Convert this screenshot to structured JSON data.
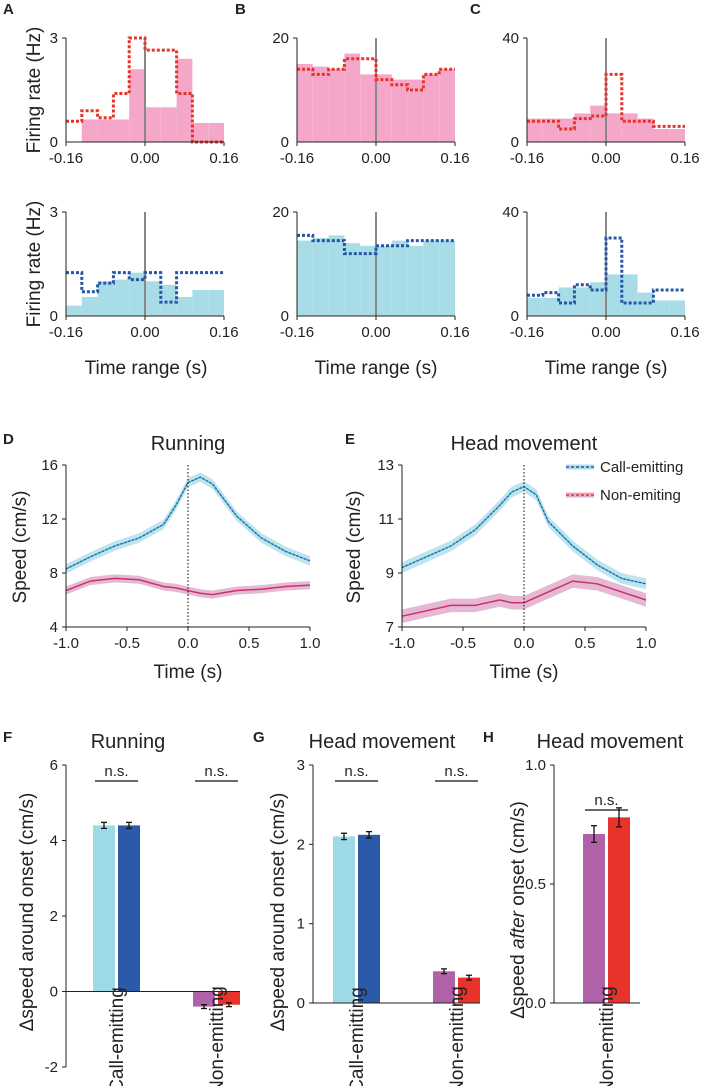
{
  "colors": {
    "pink": "#F4A7C8",
    "lightblue": "#A8DDE8",
    "red": "#E8332A",
    "darkblue": "#2457A6",
    "cyan": "#49B3CB",
    "magenta": "#B5378A",
    "purple": "#B062A9",
    "barred": "#E8332A",
    "barlight": "#9ED9E6",
    "bardark": "#2B5BA8",
    "axis": "#222222",
    "zeroline": "#888888"
  },
  "chart_data": [
    {
      "panel": "A",
      "row": "top",
      "type": "bar",
      "ylabel": "Firing rate (Hz)",
      "ylim": [
        0,
        3
      ],
      "yticks": [
        "0",
        "3"
      ],
      "xlim": [
        -0.16,
        0.16
      ],
      "xticks": [
        "-0.16",
        "0.00",
        "0.16"
      ],
      "bins": [
        -0.16,
        -0.128,
        -0.096,
        -0.064,
        -0.032,
        0.0,
        0.032,
        0.064,
        0.096,
        0.128,
        0.16
      ],
      "bar_values": [
        0,
        0.65,
        0.65,
        0.65,
        2.1,
        1.0,
        1.0,
        2.4,
        0.55,
        0.55
      ],
      "step_values": [
        0.6,
        0.9,
        0.7,
        1.4,
        3.0,
        2.65,
        2.65,
        1.4,
        0.0,
        0.0
      ]
    },
    {
      "panel": "B",
      "row": "top",
      "type": "bar",
      "ylim": [
        0,
        20
      ],
      "yticks": [
        "0",
        "20"
      ],
      "xlim": [
        -0.16,
        0.16
      ],
      "xticks": [
        "-0.16",
        "0.00",
        "0.16"
      ],
      "bins": [
        -0.16,
        -0.128,
        -0.096,
        -0.064,
        -0.032,
        0.0,
        0.032,
        0.064,
        0.096,
        0.128,
        0.16
      ],
      "bar_values": [
        15,
        14.5,
        14,
        17,
        13,
        13,
        12,
        12,
        13,
        14
      ],
      "step_values": [
        14,
        13,
        14,
        16,
        16,
        12,
        11,
        10,
        13,
        14
      ]
    },
    {
      "panel": "C",
      "row": "top",
      "type": "bar",
      "ylim": [
        0,
        40
      ],
      "yticks": [
        "0",
        "40"
      ],
      "xlim": [
        -0.16,
        0.16
      ],
      "xticks": [
        "-0.16",
        "0.00",
        "0.16"
      ],
      "bins": [
        -0.16,
        -0.128,
        -0.096,
        -0.064,
        -0.032,
        0.0,
        0.032,
        0.064,
        0.096,
        0.128,
        0.16
      ],
      "bar_values": [
        9,
        9,
        9,
        11,
        14,
        11,
        11,
        9,
        5,
        5
      ],
      "step_values": [
        8,
        8,
        5,
        9,
        10,
        26,
        8,
        8,
        6,
        6
      ]
    },
    {
      "panel": "A",
      "row": "bottom",
      "type": "bar",
      "ylabel": "Firing rate (Hz)",
      "xlabel": "Time range (s)",
      "ylim": [
        0,
        3
      ],
      "yticks": [
        "0",
        "3"
      ],
      "xlim": [
        -0.16,
        0.16
      ],
      "xticks": [
        "-0.16",
        "0.00",
        "0.16"
      ],
      "bins": [
        -0.16,
        -0.128,
        -0.096,
        -0.064,
        -0.032,
        0.0,
        0.032,
        0.064,
        0.096,
        0.128,
        0.16
      ],
      "bar_values": [
        0.3,
        0.55,
        1.0,
        1.05,
        1.25,
        1.0,
        0.9,
        0.55,
        0.75,
        0.75
      ],
      "step_values": [
        1.25,
        0.7,
        0.95,
        1.25,
        1.05,
        1.25,
        0.4,
        1.25,
        1.25,
        1.25
      ]
    },
    {
      "panel": "B",
      "row": "bottom",
      "type": "bar",
      "xlabel": "Time range (s)",
      "ylim": [
        0,
        20
      ],
      "yticks": [
        "0",
        "20"
      ],
      "xlim": [
        -0.16,
        0.16
      ],
      "xticks": [
        "-0.16",
        "0.00",
        "0.16"
      ],
      "bins": [
        -0.16,
        -0.128,
        -0.096,
        -0.064,
        -0.032,
        0.0,
        0.032,
        0.064,
        0.096,
        0.128,
        0.16
      ],
      "bar_values": [
        14.5,
        15,
        15.5,
        14,
        13.5,
        13.5,
        14.5,
        13.5,
        14.5,
        14.5
      ],
      "step_values": [
        15.5,
        14.5,
        14.5,
        12,
        12,
        13.5,
        13.5,
        14.5,
        14.5,
        14.5
      ]
    },
    {
      "panel": "C",
      "row": "bottom",
      "type": "bar",
      "xlabel": "Time range (s)",
      "ylim": [
        0,
        40
      ],
      "yticks": [
        "0",
        "40"
      ],
      "xlim": [
        -0.16,
        0.16
      ],
      "xticks": [
        "-0.16",
        "0.00",
        "0.16"
      ],
      "bins": [
        -0.16,
        -0.128,
        -0.096,
        -0.064,
        -0.032,
        0.0,
        0.032,
        0.064,
        0.096,
        0.128,
        0.16
      ],
      "bar_values": [
        7,
        7,
        11,
        11,
        13,
        16,
        16,
        9,
        6,
        6
      ],
      "step_values": [
        8,
        9,
        5,
        12,
        10,
        30,
        5,
        5,
        10,
        10
      ]
    },
    {
      "panel": "D",
      "type": "line",
      "title": "Running",
      "xlabel": "Time (s)",
      "ylabel": "Speed (cm/s)",
      "xlim": [
        -1.0,
        1.0
      ],
      "ylim": [
        4,
        16
      ],
      "xticks": [
        "-1.0",
        "-0.5",
        "0.0",
        "0.5",
        "1.0"
      ],
      "yticks": [
        "4",
        "8",
        "12",
        "16"
      ],
      "x": [
        -1.0,
        -0.8,
        -0.6,
        -0.4,
        -0.2,
        -0.1,
        0.0,
        0.1,
        0.2,
        0.4,
        0.6,
        0.8,
        1.0
      ],
      "series": [
        {
          "name": "Call-emitting",
          "values": [
            8.3,
            9.2,
            10.0,
            10.6,
            11.6,
            13.0,
            14.7,
            15.1,
            14.6,
            12.2,
            10.6,
            9.6,
            8.9
          ],
          "band": 0.35
        },
        {
          "name": "Non-emiting",
          "values": [
            6.7,
            7.4,
            7.6,
            7.5,
            7.0,
            6.9,
            6.7,
            6.5,
            6.4,
            6.7,
            6.8,
            7.0,
            7.1
          ],
          "band": 0.3
        }
      ]
    },
    {
      "panel": "E",
      "type": "line",
      "title": "Head movement",
      "xlabel": "Time (s)",
      "ylabel": "Speed (cm/s)",
      "xlim": [
        -1.0,
        1.0
      ],
      "ylim": [
        7,
        13
      ],
      "xticks": [
        "-1.0",
        "-0.5",
        "0.0",
        "0.5",
        "1.0"
      ],
      "yticks": [
        "7",
        "9",
        "11",
        "13"
      ],
      "x": [
        -1.0,
        -0.8,
        -0.6,
        -0.4,
        -0.2,
        -0.1,
        0.0,
        0.1,
        0.2,
        0.4,
        0.6,
        0.8,
        1.0
      ],
      "series": [
        {
          "name": "Call-emitting",
          "values": [
            9.2,
            9.6,
            10.0,
            10.6,
            11.5,
            12.0,
            12.2,
            11.9,
            10.9,
            10.0,
            9.3,
            8.8,
            8.6
          ],
          "band": 0.2
        },
        {
          "name": "Non-emiting",
          "values": [
            7.4,
            7.6,
            7.8,
            7.8,
            8.0,
            7.9,
            7.9,
            8.1,
            8.3,
            8.7,
            8.6,
            8.3,
            8.0
          ],
          "band": 0.25
        }
      ],
      "legend": [
        "Call-emitting",
        "Non-emiting"
      ]
    },
    {
      "panel": "F",
      "type": "bar",
      "title": "Running",
      "ylabel": "Δspeed around onset (cm/s)",
      "ylim": [
        -2,
        6
      ],
      "yticks": [
        "-2",
        "0",
        "2",
        "4",
        "6"
      ],
      "groups": [
        "Call-emitting",
        "Non-emitting"
      ],
      "values": [
        [
          4.4,
          4.4
        ],
        [
          -0.4,
          -0.35
        ]
      ],
      "errors": [
        [
          0.08,
          0.08
        ],
        [
          0.05,
          0.05
        ]
      ],
      "significance": [
        "n.s.",
        "n.s."
      ]
    },
    {
      "panel": "G",
      "type": "bar",
      "title": "Head movement",
      "ylabel": "Δspeed around onset (cm/s)",
      "ylim": [
        0,
        3
      ],
      "yticks": [
        "0",
        "1",
        "2",
        "3"
      ],
      "groups": [
        "Call-emitting",
        "Non-emitting"
      ],
      "values": [
        [
          2.1,
          2.12
        ],
        [
          0.4,
          0.32
        ]
      ],
      "errors": [
        [
          0.04,
          0.04
        ],
        [
          0.03,
          0.03
        ]
      ],
      "significance": [
        "n.s.",
        "n.s."
      ]
    },
    {
      "panel": "H",
      "type": "bar",
      "title": "Head movement",
      "ylabel_prefix": "Δspeed ",
      "ylabel_emph": "after",
      "ylabel_suffix": " onset (cm/s)",
      "ylim": [
        0,
        1.0
      ],
      "yticks": [
        "0.0",
        "0.5",
        "1.0"
      ],
      "groups": [
        "Non-emitting"
      ],
      "values": [
        [
          0.71,
          0.78
        ]
      ],
      "errors": [
        [
          0.035,
          0.04
        ]
      ],
      "significance": [
        "n.s."
      ]
    }
  ]
}
